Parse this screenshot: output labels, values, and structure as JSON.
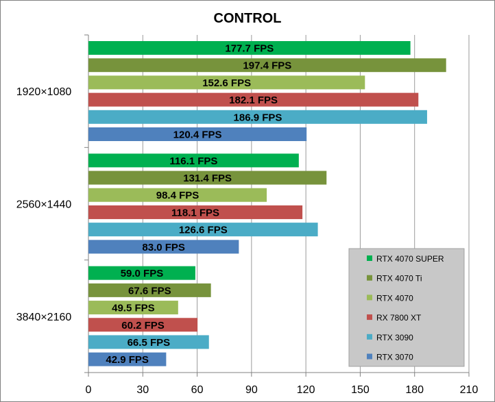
{
  "chart_data": {
    "type": "bar",
    "orientation": "horizontal",
    "title": "CONTROL",
    "categories": [
      "1920×1080",
      "2560×1440",
      "3840×2160"
    ],
    "series": [
      {
        "name": "RTX 4070 SUPER",
        "color": "#00B050",
        "values": [
          177.7,
          116.1,
          59.0
        ],
        "labels": [
          "177.7 FPS",
          "116.1 FPS",
          "59.0 FPS"
        ]
      },
      {
        "name": "RTX 4070 Ti",
        "color": "#77933C",
        "values": [
          197.4,
          131.4,
          67.6
        ],
        "labels": [
          "197.4 FPS",
          "131.4 FPS",
          "67.6 FPS"
        ]
      },
      {
        "name": "RTX 4070",
        "color": "#9BBB59",
        "values": [
          152.6,
          98.4,
          49.5
        ],
        "labels": [
          "152.6 FPS",
          "98.4 FPS",
          "49.5 FPS"
        ]
      },
      {
        "name": "RX 7800 XT",
        "color": "#C0504D",
        "values": [
          182.1,
          118.1,
          60.2
        ],
        "labels": [
          "182.1 FPS",
          "118.1 FPS",
          "60.2 FPS"
        ]
      },
      {
        "name": "RTX 3090",
        "color": "#4BACC6",
        "values": [
          186.9,
          126.6,
          66.5
        ],
        "labels": [
          "186.9 FPS",
          "126.6 FPS",
          "66.5 FPS"
        ]
      },
      {
        "name": "RTX 3070",
        "color": "#4F81BD",
        "values": [
          120.4,
          83.0,
          42.9
        ],
        "labels": [
          "120.4 FPS",
          "83.0 FPS",
          "42.9 FPS"
        ]
      }
    ],
    "xlim": [
      0,
      210
    ],
    "xticks": [
      0,
      30,
      60,
      90,
      120,
      150,
      180,
      210
    ],
    "xlabel": "",
    "ylabel": "",
    "grid": true,
    "legend": "bottom-right"
  }
}
